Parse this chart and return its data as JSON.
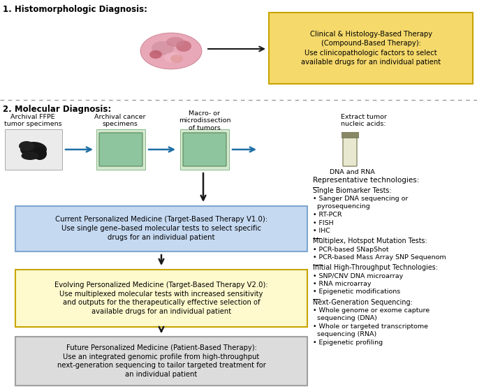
{
  "title_1": "1. Histomorphologic Diagnosis:",
  "title_2": "2. Molecular Diagnosis:",
  "yellow_box1_text": "Clinical & Histology-Based Therapy\n(Compound-Based Therapy):\nUse clinicopathologic factors to select\navailable drugs for an individual patient",
  "yellow_box1_color": "#F5D96B",
  "yellow_box1_edge": "#C8A500",
  "blue_box_text": "Current Personalized Medicine (Target-Based Therapy V1.0):\nUse single gene–based molecular tests to select specific\ndrugs for an individual patient",
  "blue_box_color": "#C5D9F1",
  "blue_box_edge": "#7FA7CF",
  "yellow_box2_text": "Evolving Personalized Medicine (Target-Based Therapy V2.0):\nUse multiplexed molecular tests with increased sensitivity\nand outputs for the therapeutically effective selection of\navailable drugs for an individual patient",
  "yellow_box2_color": "#FFFACD",
  "yellow_box2_edge": "#C8A500",
  "gray_box_text": "Future Personalized Medicine (Patient-Based Therapy):\nUse an integrated genomic profile from high-throughput\nnext-generation sequencing to tailor targeted treatment for\nan individual patient",
  "gray_box_color": "#DCDCDC",
  "gray_box_edge": "#A0A0A0",
  "label_archival_ffpe": "Archival FFPE\ntumor specimens",
  "label_archival_cancer": "Archival cancer\nspecimens",
  "label_macro": "Macro- or\nmicrodissection\nof tumors",
  "label_extract": "Extract tumor\nnucleic acids:",
  "label_dna_rna": "DNA and RNA",
  "label_rep_tech": "Representative technologies:",
  "single_biomarker_title": "Single Biomarker Tests:",
  "single_biomarker_items": [
    "Sanger DNA sequencing or\n  pyrosequencing",
    "RT-PCR",
    "FISH",
    "IHC"
  ],
  "multiplex_title": "Multiplex, Hotspot Mutation Tests:",
  "multiplex_items": [
    "PCR-based SNapShot",
    "PCR-based Mass Array SNP Sequenom"
  ],
  "initial_title": "Initial High-Throughput Technologies:",
  "initial_items": [
    "SNP/CNV DNA microarray",
    "RNA microarray",
    "Epigenetic modifications"
  ],
  "ngs_title": "Next-Generation Sequencing:",
  "ngs_items": [
    "Whole genome or exome capture\n  sequencing (DNA)",
    "Whole or targeted transcriptome\n  sequencing (RNA)",
    "Epigenetic profiling"
  ],
  "black": "#1A1A1A",
  "blue_arrow": "#1F6FA5",
  "dash_color": "#888888",
  "bg": "#FFFFFF"
}
